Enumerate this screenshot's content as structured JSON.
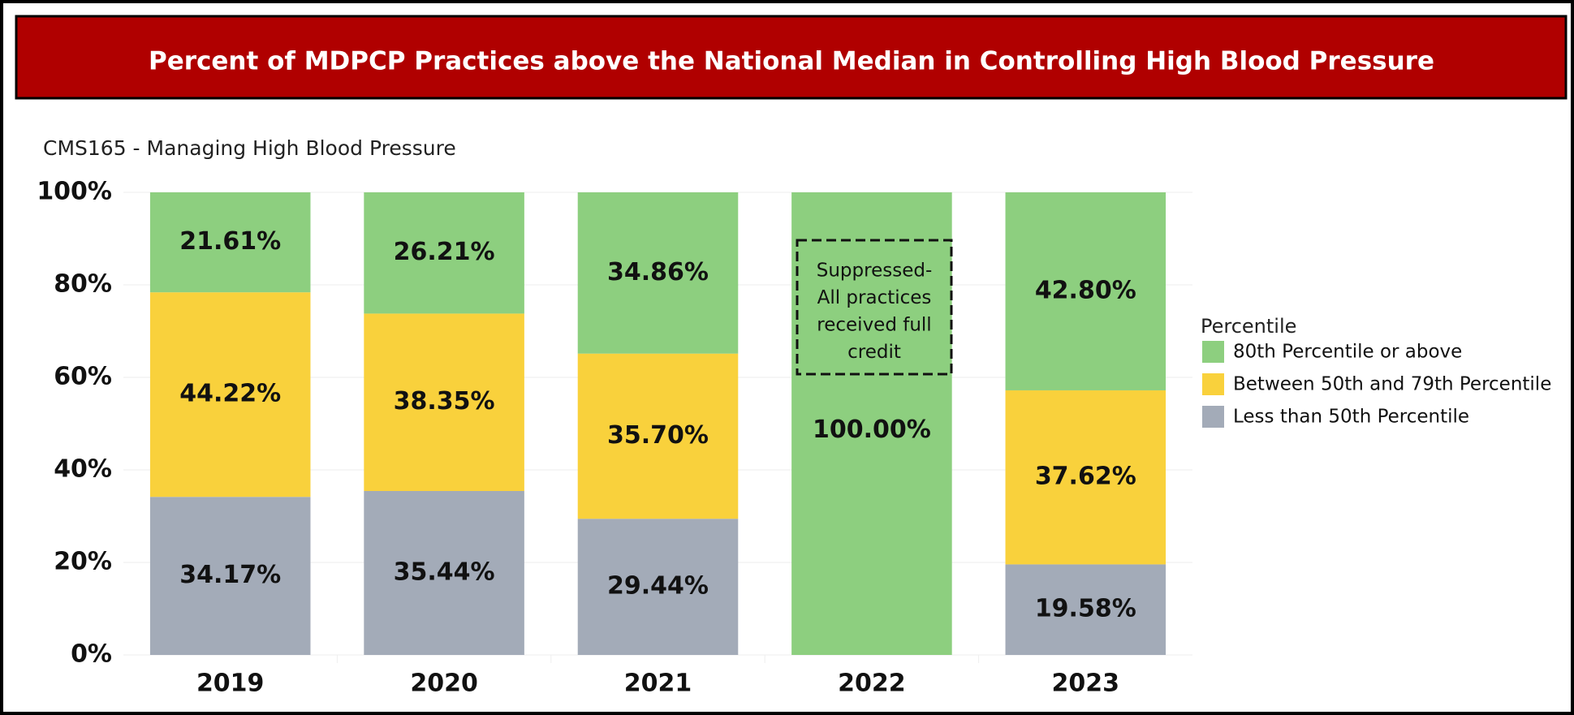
{
  "header": {
    "title": "Percent of MDPCP Practices above the National Median in Controlling High Blood Pressure"
  },
  "chart_data": {
    "type": "stacked_bar",
    "subtitle": "CMS165 - Managing High Blood Pressure",
    "categories": [
      "2019",
      "2020",
      "2021",
      "2022",
      "2023"
    ],
    "series": [
      {
        "name": "Less than 50th Percentile",
        "color": "#a3abb8",
        "values": [
          34.17,
          35.44,
          29.44,
          0,
          19.58
        ],
        "value_labels": [
          "34.17%",
          "35.44%",
          "29.44%",
          null,
          "19.58%"
        ]
      },
      {
        "name": "Between 50th and 79th Percentile",
        "color": "#f9d13c",
        "values": [
          44.22,
          38.35,
          35.7,
          0,
          37.62
        ],
        "value_labels": [
          "44.22%",
          "38.35%",
          "35.70%",
          null,
          "37.62%"
        ]
      },
      {
        "name": "80th Percentile or above",
        "color": "#8dcf7f",
        "values": [
          21.61,
          26.21,
          34.86,
          100,
          42.8
        ],
        "value_labels": [
          "21.61%",
          "26.21%",
          "34.86%",
          "100.00%",
          "42.80%"
        ]
      }
    ],
    "legend_title": "Percentile",
    "annotation": [
      "Suppressed-",
      "All practices",
      "received full",
      "credit"
    ],
    "ylim": [
      0,
      100
    ],
    "yticks": [
      {
        "value": 0,
        "label": "0%"
      },
      {
        "value": 20,
        "label": "20%"
      },
      {
        "value": 40,
        "label": "40%"
      },
      {
        "value": 60,
        "label": "60%"
      },
      {
        "value": 80,
        "label": "80%"
      },
      {
        "value": 100,
        "label": "100%"
      }
    ],
    "grid": true
  }
}
